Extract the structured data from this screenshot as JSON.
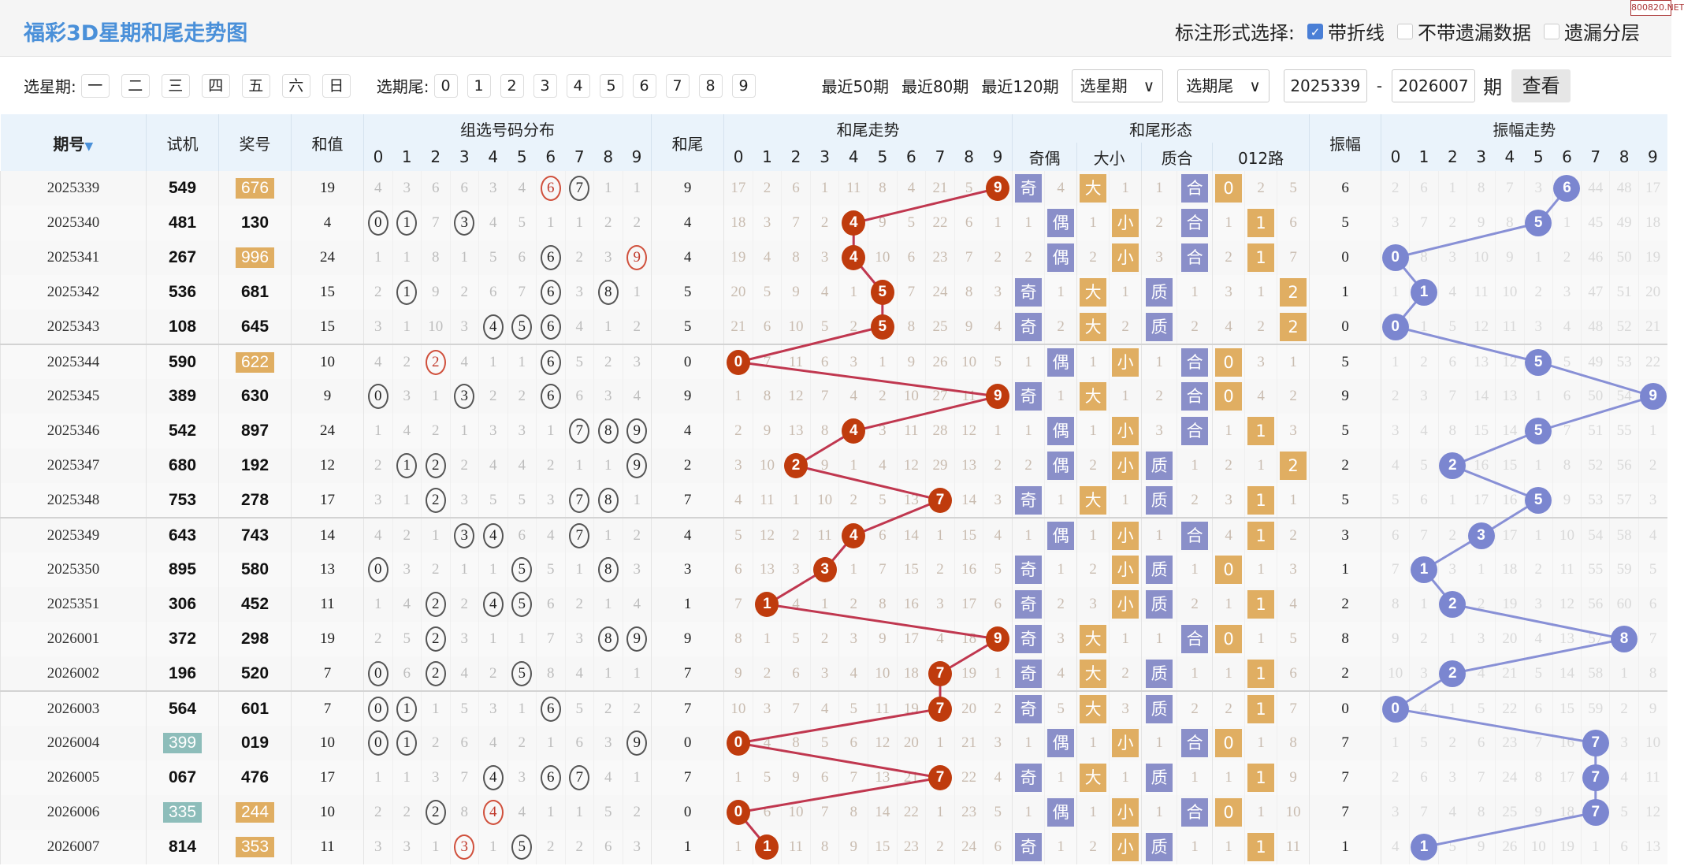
{
  "header": {
    "title": "福彩3D星期和尾走势图",
    "mark_label": "标注形式选择:",
    "options": [
      {
        "label": "带折线",
        "checked": true
      },
      {
        "label": "不带遗漏数据",
        "checked": false
      },
      {
        "label": "遗漏分层",
        "checked": false
      }
    ],
    "watermark": "800820.NET"
  },
  "controls": {
    "week_label": "选星期:",
    "weeks": [
      "一",
      "二",
      "三",
      "四",
      "五",
      "六",
      "日"
    ],
    "tail_label": "选期尾:",
    "tails": [
      "0",
      "1",
      "2",
      "3",
      "4",
      "5",
      "6",
      "7",
      "8",
      "9"
    ],
    "recent": [
      "最近50期",
      "最近80期",
      "最近120期"
    ],
    "select_week": "选星期",
    "select_tail": "选期尾",
    "from": "2025339",
    "dash": "-",
    "to": "2026007",
    "unit": "期",
    "view": "查看"
  },
  "columns": {
    "issue": "期号",
    "test": "试机",
    "prize": "奖号",
    "sum": "和值",
    "group": "组选号码分布",
    "tail": "和尾",
    "tail_trend": "和尾走势",
    "form": "和尾形态",
    "form_sub": [
      "奇偶",
      "大小",
      "质合",
      "012路"
    ],
    "amp": "振幅",
    "amp_trend": "振幅走势",
    "digits": [
      "0",
      "1",
      "2",
      "3",
      "4",
      "5",
      "6",
      "7",
      "8",
      "9"
    ]
  },
  "colors": {
    "title": "#4a90d9",
    "trend_ball": "#bf3b0d",
    "amp_ball": "#7b86d0",
    "badge_blue": "#8a8fc9",
    "badge_orange": "#e0ae62",
    "test_pair": "#8dbdba",
    "line_red": "#c0374f",
    "line_blue": "#8890d6"
  },
  "rows": [
    {
      "issue": "2025339",
      "test": "549",
      "prize": "676",
      "sum": "19",
      "grp": [
        4,
        3,
        6,
        6,
        3,
        4,
        6,
        7,
        1,
        1
      ],
      "tail": 9,
      "trend": [
        17,
        2,
        6,
        1,
        11,
        8,
        4,
        21,
        5,
        9
      ],
      "oe": [
        "奇",
        "4"
      ],
      "bs": [
        "大",
        "1"
      ],
      "pc": [
        "1",
        "合"
      ],
      "r012": [
        "0",
        "2",
        "5"
      ],
      "amp": 6,
      "ampT": [
        2,
        6,
        1,
        8,
        7,
        3,
        6,
        44,
        48,
        17
      ]
    },
    {
      "issue": "2025340",
      "test": "481",
      "prize": "130",
      "sum": "4",
      "grp": [
        0,
        1,
        7,
        3,
        4,
        5,
        1,
        1,
        2,
        2
      ],
      "tail": 4,
      "trend": [
        18,
        3,
        7,
        2,
        4,
        9,
        5,
        22,
        6,
        1
      ],
      "oe": [
        "1",
        "偶"
      ],
      "bs": [
        "1",
        "小"
      ],
      "pc": [
        "2",
        "合"
      ],
      "r012": [
        "1",
        "1",
        "6"
      ],
      "amp": 5,
      "ampT": [
        3,
        7,
        2,
        9,
        8,
        5,
        1,
        45,
        49,
        18
      ]
    },
    {
      "issue": "2025341",
      "test": "267",
      "prize": "996",
      "sum": "24",
      "grp": [
        1,
        1,
        8,
        1,
        5,
        6,
        6,
        2,
        3,
        9
      ],
      "tail": 4,
      "trend": [
        19,
        4,
        8,
        3,
        4,
        10,
        6,
        23,
        7,
        2
      ],
      "oe": [
        "2",
        "偶"
      ],
      "bs": [
        "2",
        "小"
      ],
      "pc": [
        "3",
        "合"
      ],
      "r012": [
        "2",
        "1",
        "7"
      ],
      "amp": 0,
      "ampT": [
        0,
        8,
        3,
        10,
        9,
        1,
        2,
        46,
        50,
        19
      ]
    },
    {
      "issue": "2025342",
      "test": "536",
      "prize": "681",
      "sum": "15",
      "grp": [
        2,
        1,
        9,
        2,
        6,
        7,
        6,
        3,
        8,
        1
      ],
      "tail": 5,
      "trend": [
        20,
        5,
        9,
        4,
        1,
        5,
        7,
        24,
        8,
        3
      ],
      "oe": [
        "奇",
        "1"
      ],
      "bs": [
        "大",
        "1"
      ],
      "pc": [
        "质",
        "1"
      ],
      "r012": [
        "3",
        "1",
        "2"
      ],
      "amp": 1,
      "ampT": [
        1,
        1,
        4,
        11,
        10,
        2,
        3,
        47,
        51,
        20
      ]
    },
    {
      "issue": "2025343",
      "test": "108",
      "prize": "645",
      "sum": "15",
      "grp": [
        3,
        1,
        10,
        3,
        4,
        5,
        6,
        4,
        1,
        2
      ],
      "tail": 5,
      "trend": [
        21,
        6,
        10,
        5,
        2,
        5,
        8,
        25,
        9,
        4
      ],
      "oe": [
        "奇",
        "2"
      ],
      "bs": [
        "大",
        "2"
      ],
      "pc": [
        "质",
        "2"
      ],
      "r012": [
        "4",
        "2",
        "2"
      ],
      "amp": 0,
      "ampT": [
        0,
        1,
        5,
        12,
        11,
        3,
        4,
        48,
        52,
        21
      ]
    },
    {
      "issue": "2025344",
      "test": "590",
      "prize": "622",
      "sum": "10",
      "grp": [
        4,
        2,
        2,
        4,
        1,
        1,
        6,
        5,
        2,
        3
      ],
      "tail": 0,
      "trend": [
        0,
        7,
        11,
        6,
        3,
        1,
        9,
        26,
        10,
        5
      ],
      "oe": [
        "1",
        "偶"
      ],
      "bs": [
        "1",
        "小"
      ],
      "pc": [
        "1",
        "合"
      ],
      "r012": [
        "0",
        "3",
        "1"
      ],
      "amp": 5,
      "ampT": [
        1,
        2,
        6,
        13,
        12,
        5,
        5,
        49,
        53,
        22
      ]
    },
    {
      "issue": "2025345",
      "test": "389",
      "prize": "630",
      "sum": "9",
      "grp": [
        0,
        3,
        1,
        3,
        2,
        2,
        6,
        6,
        3,
        4
      ],
      "tail": 9,
      "trend": [
        1,
        8,
        12,
        7,
        4,
        2,
        10,
        27,
        11,
        9
      ],
      "oe": [
        "奇",
        "1"
      ],
      "bs": [
        "大",
        "1"
      ],
      "pc": [
        "2",
        "合"
      ],
      "r012": [
        "0",
        "4",
        "2"
      ],
      "amp": 9,
      "ampT": [
        2,
        3,
        7,
        14,
        13,
        1,
        6,
        50,
        54,
        9
      ]
    },
    {
      "issue": "2025346",
      "test": "542",
      "prize": "897",
      "sum": "24",
      "grp": [
        1,
        4,
        2,
        1,
        3,
        3,
        1,
        7,
        8,
        9
      ],
      "tail": 4,
      "trend": [
        2,
        9,
        13,
        8,
        4,
        3,
        11,
        28,
        12,
        1
      ],
      "oe": [
        "1",
        "偶"
      ],
      "bs": [
        "1",
        "小"
      ],
      "pc": [
        "3",
        "合"
      ],
      "r012": [
        "1",
        "1",
        "3"
      ],
      "amp": 5,
      "ampT": [
        3,
        4,
        8,
        15,
        14,
        5,
        7,
        51,
        55,
        1
      ]
    },
    {
      "issue": "2025347",
      "test": "680",
      "prize": "192",
      "sum": "12",
      "grp": [
        2,
        1,
        2,
        2,
        4,
        4,
        2,
        1,
        1,
        9
      ],
      "tail": 2,
      "trend": [
        3,
        10,
        2,
        9,
        1,
        4,
        12,
        29,
        13,
        2
      ],
      "oe": [
        "2",
        "偶"
      ],
      "bs": [
        "2",
        "小"
      ],
      "pc": [
        "质",
        "1"
      ],
      "r012": [
        "2",
        "1",
        "2"
      ],
      "amp": 2,
      "ampT": [
        4,
        5,
        2,
        16,
        15,
        1,
        8,
        52,
        56,
        2
      ]
    },
    {
      "issue": "2025348",
      "test": "753",
      "prize": "278",
      "sum": "17",
      "grp": [
        3,
        1,
        2,
        3,
        5,
        5,
        3,
        7,
        8,
        1
      ],
      "tail": 7,
      "trend": [
        4,
        11,
        1,
        10,
        2,
        5,
        13,
        7,
        14,
        3
      ],
      "oe": [
        "奇",
        "1"
      ],
      "bs": [
        "大",
        "1"
      ],
      "pc": [
        "质",
        "2"
      ],
      "r012": [
        "3",
        "1",
        "1"
      ],
      "amp": 5,
      "ampT": [
        5,
        6,
        1,
        17,
        16,
        5,
        9,
        53,
        57,
        3
      ]
    },
    {
      "issue": "2025349",
      "test": "643",
      "prize": "743",
      "sum": "14",
      "grp": [
        4,
        2,
        1,
        3,
        4,
        6,
        4,
        7,
        1,
        2
      ],
      "tail": 4,
      "trend": [
        5,
        12,
        2,
        11,
        4,
        6,
        14,
        1,
        15,
        4
      ],
      "oe": [
        "1",
        "偶"
      ],
      "bs": [
        "1",
        "小"
      ],
      "pc": [
        "1",
        "合"
      ],
      "r012": [
        "4",
        "1",
        "2"
      ],
      "amp": 3,
      "ampT": [
        6,
        7,
        2,
        3,
        17,
        1,
        10,
        54,
        58,
        4
      ]
    },
    {
      "issue": "2025350",
      "test": "895",
      "prize": "580",
      "sum": "13",
      "grp": [
        0,
        3,
        2,
        1,
        1,
        5,
        5,
        1,
        8,
        3
      ],
      "tail": 3,
      "trend": [
        6,
        13,
        3,
        3,
        1,
        7,
        15,
        2,
        16,
        5
      ],
      "oe": [
        "奇",
        "1"
      ],
      "bs": [
        "2",
        "小"
      ],
      "pc": [
        "质",
        "1"
      ],
      "r012": [
        "0",
        "1",
        "3"
      ],
      "amp": 1,
      "ampT": [
        7,
        1,
        3,
        1,
        18,
        2,
        11,
        55,
        59,
        5
      ]
    },
    {
      "issue": "2025351",
      "test": "306",
      "prize": "452",
      "sum": "11",
      "grp": [
        1,
        4,
        2,
        2,
        4,
        5,
        6,
        2,
        1,
        4
      ],
      "tail": 1,
      "trend": [
        7,
        1,
        4,
        1,
        2,
        8,
        16,
        3,
        17,
        6
      ],
      "oe": [
        "奇",
        "2"
      ],
      "bs": [
        "3",
        "小"
      ],
      "pc": [
        "质",
        "2"
      ],
      "r012": [
        "1",
        "1",
        "4"
      ],
      "amp": 2,
      "ampT": [
        8,
        1,
        2,
        2,
        19,
        3,
        12,
        56,
        60,
        6
      ]
    },
    {
      "issue": "2026001",
      "test": "372",
      "prize": "298",
      "sum": "19",
      "grp": [
        2,
        5,
        2,
        3,
        1,
        1,
        7,
        3,
        8,
        9
      ],
      "tail": 9,
      "trend": [
        8,
        1,
        5,
        2,
        3,
        9,
        17,
        4,
        18,
        9
      ],
      "oe": [
        "奇",
        "3"
      ],
      "bs": [
        "大",
        "1"
      ],
      "pc": [
        "1",
        "合"
      ],
      "r012": [
        "0",
        "1",
        "5"
      ],
      "amp": 8,
      "ampT": [
        9,
        2,
        1,
        3,
        20,
        4,
        13,
        57,
        8,
        7
      ]
    },
    {
      "issue": "2026002",
      "test": "196",
      "prize": "520",
      "sum": "7",
      "grp": [
        0,
        6,
        2,
        4,
        2,
        5,
        8,
        4,
        1,
        1
      ],
      "tail": 7,
      "trend": [
        9,
        2,
        6,
        3,
        4,
        10,
        18,
        7,
        19,
        1
      ],
      "oe": [
        "奇",
        "4"
      ],
      "bs": [
        "大",
        "2"
      ],
      "pc": [
        "质",
        "1"
      ],
      "r012": [
        "1",
        "1",
        "6"
      ],
      "amp": 2,
      "ampT": [
        10,
        3,
        2,
        4,
        21,
        5,
        14,
        58,
        1,
        8
      ]
    },
    {
      "issue": "2026003",
      "test": "564",
      "prize": "601",
      "sum": "7",
      "grp": [
        0,
        1,
        1,
        5,
        3,
        1,
        6,
        5,
        2,
        2
      ],
      "tail": 7,
      "trend": [
        10,
        3,
        7,
        4,
        5,
        11,
        19,
        7,
        20,
        2
      ],
      "oe": [
        "奇",
        "5"
      ],
      "bs": [
        "大",
        "3"
      ],
      "pc": [
        "质",
        "2"
      ],
      "r012": [
        "2",
        "1",
        "7"
      ],
      "amp": 0,
      "ampT": [
        0,
        4,
        1,
        5,
        22,
        6,
        15,
        59,
        2,
        9
      ]
    },
    {
      "issue": "2026004",
      "test": "399",
      "prize": "019",
      "sum": "10",
      "grp": [
        0,
        1,
        2,
        6,
        4,
        2,
        1,
        6,
        3,
        9
      ],
      "tail": 0,
      "trend": [
        0,
        4,
        8,
        5,
        6,
        12,
        20,
        1,
        21,
        3
      ],
      "oe": [
        "1",
        "偶"
      ],
      "bs": [
        "1",
        "小"
      ],
      "pc": [
        "1",
        "合"
      ],
      "r012": [
        "0",
        "1",
        "8"
      ],
      "amp": 7,
      "ampT": [
        1,
        5,
        2,
        6,
        23,
        7,
        16,
        7,
        3,
        10
      ]
    },
    {
      "issue": "2026005",
      "test": "067",
      "prize": "476",
      "sum": "17",
      "grp": [
        1,
        1,
        3,
        7,
        4,
        3,
        6,
        7,
        4,
        1
      ],
      "tail": 7,
      "trend": [
        1,
        5,
        9,
        6,
        7,
        13,
        21,
        7,
        22,
        4
      ],
      "oe": [
        "奇",
        "1"
      ],
      "bs": [
        "大",
        "1"
      ],
      "pc": [
        "质",
        "1"
      ],
      "r012": [
        "1",
        "1",
        "9"
      ],
      "amp": 7,
      "ampT": [
        2,
        6,
        3,
        7,
        24,
        8,
        17,
        7,
        4,
        11
      ]
    },
    {
      "issue": "2026006",
      "test": "335",
      "prize": "244",
      "sum": "10",
      "grp": [
        2,
        2,
        2,
        8,
        4,
        4,
        1,
        1,
        5,
        2
      ],
      "tail": 0,
      "trend": [
        0,
        6,
        10,
        7,
        8,
        14,
        22,
        1,
        23,
        5
      ],
      "oe": [
        "1",
        "偶"
      ],
      "bs": [
        "1",
        "小"
      ],
      "pc": [
        "1",
        "合"
      ],
      "r012": [
        "0",
        "1",
        "10"
      ],
      "amp": 7,
      "ampT": [
        3,
        7,
        4,
        8,
        25,
        9,
        18,
        7,
        5,
        12
      ]
    },
    {
      "issue": "2026007",
      "test": "814",
      "prize": "353",
      "sum": "11",
      "grp": [
        3,
        3,
        1,
        3,
        1,
        5,
        2,
        2,
        6,
        3
      ],
      "tail": 1,
      "trend": [
        1,
        1,
        11,
        8,
        9,
        15,
        23,
        2,
        24,
        6
      ],
      "oe": [
        "奇",
        "1"
      ],
      "bs": [
        "2",
        "小"
      ],
      "pc": [
        "质",
        "1"
      ],
      "r012": [
        "1",
        "1",
        "11"
      ],
      "amp": 1,
      "ampT": [
        4,
        1,
        5,
        9,
        26,
        10,
        19,
        1,
        6,
        13
      ]
    }
  ]
}
